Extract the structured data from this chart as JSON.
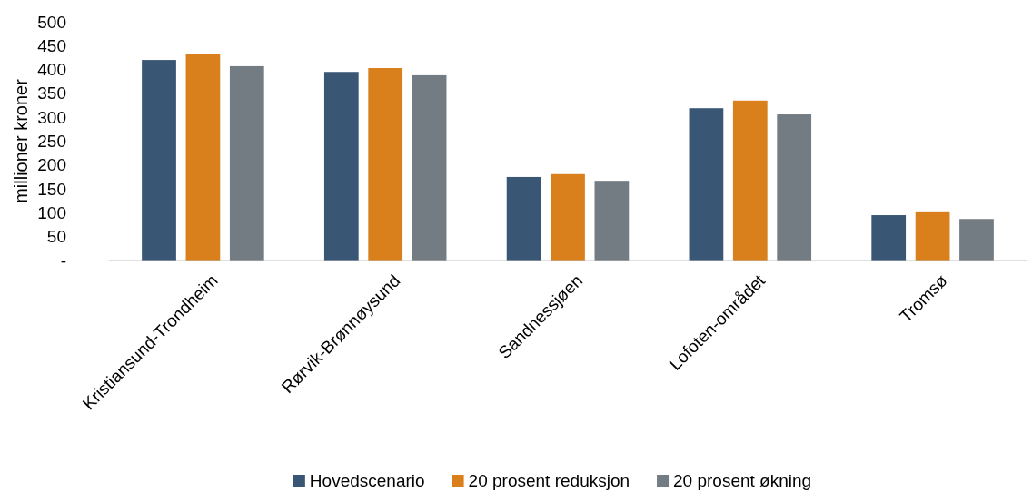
{
  "chart_data": {
    "type": "bar",
    "ylabel": "millioner kroner",
    "categories": [
      "Kristiansund-Trondheim",
      "Rørvik-Brønnøysund",
      "Sandnessjøen",
      "Lofoten-området",
      "Tromsø"
    ],
    "series": [
      {
        "name": "Hovedscenario",
        "color": "#3a5675",
        "values": [
          420,
          395,
          175,
          319,
          95
        ]
      },
      {
        "name": "20 prosent reduksjon",
        "color": "#d97f1c",
        "values": [
          433,
          403,
          181,
          335,
          103
        ]
      },
      {
        "name": "20 prosent økning",
        "color": "#737b83",
        "values": [
          407,
          388,
          167,
          306,
          87
        ]
      }
    ],
    "ylim": [
      0,
      500
    ],
    "yticks": [
      {
        "value": 0,
        "label": "-"
      },
      50,
      100,
      150,
      200,
      250,
      300,
      350,
      400,
      450,
      500
    ],
    "grid": false,
    "legend": "bottom"
  }
}
